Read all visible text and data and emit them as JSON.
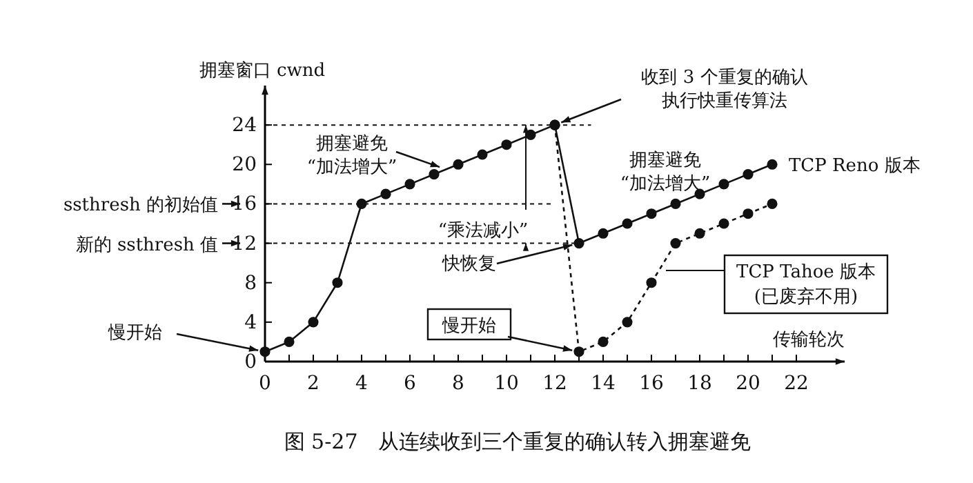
{
  "chart_data": {
    "type": "line",
    "title": "图 5-27　从连续收到三个重复的确认转入拥塞避免",
    "xlabel": "传输轮次",
    "ylabel": "拥塞窗口 cwnd",
    "xlim": [
      0,
      24
    ],
    "ylim": [
      0,
      28
    ],
    "xticks": [
      0,
      {
        "value": 1,
        "label": null
      },
      2,
      {
        "value": 3,
        "label": null
      },
      4,
      {
        "value": 5,
        "label": null
      },
      6,
      {
        "value": 7,
        "label": null
      },
      8,
      {
        "value": 9,
        "label": null
      },
      10,
      {
        "value": 11,
        "label": null
      },
      12,
      {
        "value": 13,
        "label": null
      },
      14,
      {
        "value": 15,
        "label": null
      },
      16,
      {
        "value": 17,
        "label": null
      },
      18,
      {
        "value": 19,
        "label": null
      },
      20,
      {
        "value": 21,
        "label": null
      },
      22
    ],
    "yticks": [
      0,
      4,
      8,
      12,
      16,
      20,
      24
    ],
    "grid": false,
    "marker": "circle",
    "series": [
      {
        "name": "TCP Reno 版本",
        "color": "#111111",
        "line_style": "solid",
        "x": [
          0,
          1,
          2,
          3,
          4,
          5,
          6,
          7,
          8,
          9,
          10,
          11,
          12,
          13,
          14,
          15,
          16,
          17,
          18,
          19,
          20,
          21
        ],
        "values": [
          1,
          2,
          4,
          8,
          16,
          17,
          18,
          19,
          20,
          21,
          22,
          23,
          24,
          12,
          13,
          14,
          15,
          16,
          17,
          18,
          19,
          20
        ]
      },
      {
        "name": "TCP Tahoe 版本",
        "color": "#111111",
        "line_style": "dashed",
        "x": [
          12,
          13,
          14,
          15,
          16,
          17,
          18,
          19,
          20,
          21
        ],
        "values": [
          24,
          1,
          2,
          4,
          8,
          12,
          13,
          14,
          15,
          16
        ]
      }
    ],
    "ref_lines": [
      {
        "axis": "y",
        "value": 24,
        "line_style": "dashed"
      },
      {
        "axis": "y",
        "value": 16,
        "label": "ssthresh 的初始值",
        "line_style": "dashed"
      },
      {
        "axis": "y",
        "value": 12,
        "label": "新的 ssthresh 值",
        "line_style": "dashed"
      }
    ],
    "annotations": [
      {
        "text": "慢开始",
        "x": 0,
        "y": 1
      },
      {
        "text": "拥塞避免“加法增大”",
        "x": 7.5,
        "y": 19.5
      },
      {
        "text": "“乘法减小”",
        "x": 10.8,
        "y": 24
      },
      {
        "text": "收到 3 个重复的确认执行快重传算法",
        "x": 12,
        "y": 24
      },
      "拥塞避免“加法增大”",
      {
        "text": "快恢复",
        "x": 13,
        "y": 12
      },
      {
        "text": "慢开始",
        "x": 13,
        "y": 1
      },
      "(已废弃不用)"
    ]
  }
}
